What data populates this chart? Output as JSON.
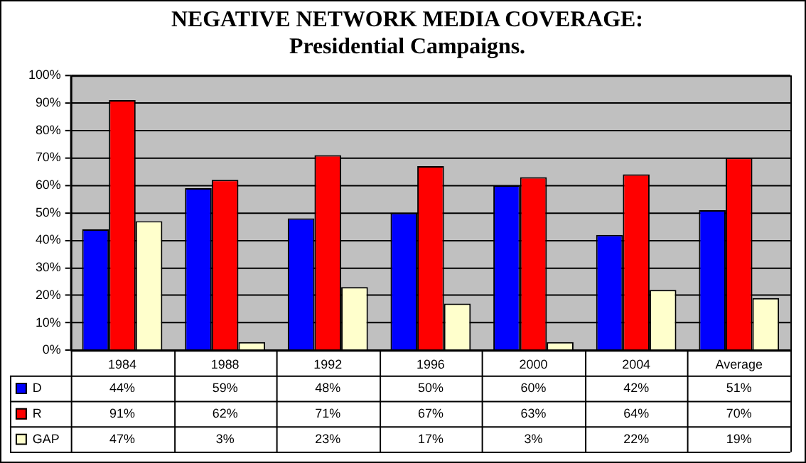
{
  "chart_data": {
    "type": "bar",
    "title": "NEGATIVE NETWORK MEDIA COVERAGE:",
    "subtitle": "Presidential Campaigns.",
    "categories": [
      "1984",
      "1988",
      "1992",
      "1996",
      "2000",
      "2004",
      "Average"
    ],
    "series": [
      {
        "name": "D",
        "color": "#0000ff",
        "values": [
          44,
          59,
          48,
          50,
          60,
          42,
          51
        ],
        "value_labels": [
          "44%",
          "59%",
          "48%",
          "50%",
          "60%",
          "42%",
          "51%"
        ]
      },
      {
        "name": "R",
        "color": "#ff0000",
        "values": [
          91,
          62,
          71,
          67,
          63,
          64,
          70
        ],
        "value_labels": [
          "91%",
          "62%",
          "71%",
          "67%",
          "63%",
          "64%",
          "70%"
        ]
      },
      {
        "name": "GAP",
        "color": "#ffffcc",
        "values": [
          47,
          3,
          23,
          17,
          3,
          22,
          19
        ],
        "value_labels": [
          "47%",
          "3%",
          "23%",
          "17%",
          "3%",
          "22%",
          "19%"
        ]
      }
    ],
    "ylim": [
      0,
      100
    ],
    "yticks": [
      {
        "value": 0,
        "label": "0%"
      },
      {
        "value": 10,
        "label": "10%"
      },
      {
        "value": 20,
        "label": "20%"
      },
      {
        "value": 30,
        "label": "30%"
      },
      {
        "value": 40,
        "label": "40%"
      },
      {
        "value": 50,
        "label": "50%"
      },
      {
        "value": 60,
        "label": "60%"
      },
      {
        "value": 70,
        "label": "70%"
      },
      {
        "value": 80,
        "label": "80%"
      },
      {
        "value": 90,
        "label": "90%"
      },
      {
        "value": 100,
        "label": "100%"
      }
    ],
    "grid": "y",
    "legend": "bottom left"
  }
}
